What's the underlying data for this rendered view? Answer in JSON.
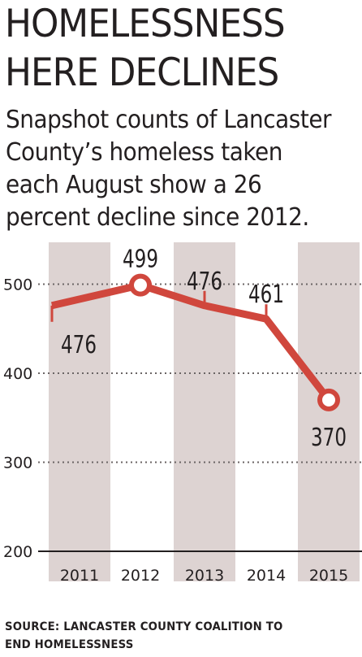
{
  "header": {
    "title_line1": "HOMELESSNESS",
    "title_line2": "HERE DECLINES",
    "subtitle_line1": "Snapshot counts of Lancaster",
    "subtitle_line2": "County’s homeless taken",
    "subtitle_line3": "each August show a 26",
    "subtitle_line4": "percent decline since 2012."
  },
  "source": {
    "line1": "SOURCE:  LANCASTER COUNTY COALITION TO",
    "line2": "END HOMELESSNESS"
  },
  "colors": {
    "line": "#d0473d",
    "band": "#ddd3d2",
    "text": "#231f20"
  },
  "chart_data": {
    "type": "line",
    "categories": [
      "2011",
      "2012",
      "2013",
      "2014",
      "2015"
    ],
    "values": [
      476,
      499,
      476,
      461,
      370
    ],
    "data_labels": [
      "476",
      "499",
      "476",
      "461",
      "370"
    ],
    "highlighted_points": [
      "2012",
      "2015"
    ],
    "y_ticks": [
      "200",
      "300",
      "400",
      "500"
    ],
    "ylim": [
      200,
      530
    ],
    "grid": true,
    "alternating_column_bands": true,
    "xlabel": "",
    "ylabel": ""
  }
}
